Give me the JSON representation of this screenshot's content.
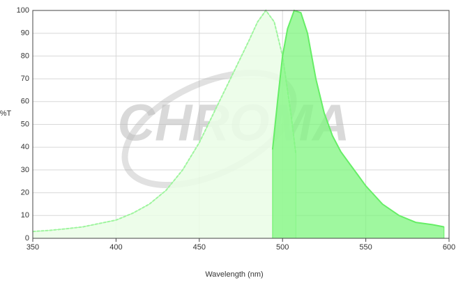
{
  "chart_data": {
    "type": "area",
    "watermark": "CHROMA",
    "xlabel": "Wavelength (nm)",
    "ylabel": "%T",
    "xlim": [
      350,
      600
    ],
    "ylim": [
      0,
      100
    ],
    "xticks": [
      350,
      400,
      450,
      500,
      550,
      600
    ],
    "yticks": [
      0,
      10,
      20,
      30,
      40,
      50,
      60,
      70,
      80,
      90,
      100
    ],
    "grid": true,
    "series": [
      {
        "color": "#9ef59e",
        "fill": "#eafde6",
        "dashed": true,
        "x": [
          350,
          360,
          370,
          380,
          390,
          400,
          410,
          420,
          430,
          440,
          450,
          460,
          470,
          480,
          485,
          490,
          495,
          500,
          505,
          508
        ],
        "values": [
          3,
          3.5,
          4.2,
          5,
          6.5,
          8,
          11,
          15,
          21,
          30,
          42,
          57,
          72,
          87,
          95,
          100,
          95,
          80,
          55,
          37
        ]
      },
      {
        "color": "#66ee66",
        "fill": "#7ff57f",
        "dashed": false,
        "x": [
          494,
          497,
          500,
          503,
          507,
          511,
          515,
          520,
          525,
          530,
          535,
          540,
          545,
          550,
          560,
          570,
          580,
          590,
          597
        ],
        "values": [
          39,
          60,
          80,
          92,
          100,
          99,
          90,
          70,
          55,
          45,
          38,
          33,
          28,
          23,
          15,
          10,
          7,
          6,
          5
        ]
      }
    ]
  }
}
